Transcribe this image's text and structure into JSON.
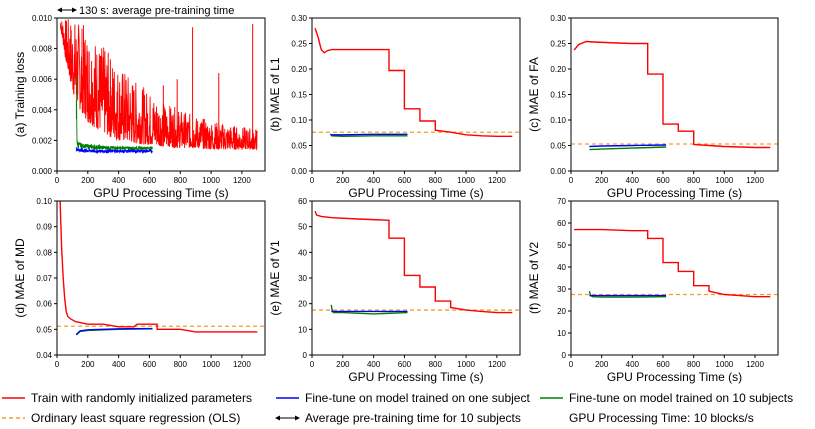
{
  "figure": {
    "x_axis_label": "GPU Processing Time  (s)",
    "annotation": "130 s: average pre-training time"
  },
  "colors": {
    "random": "#ff0000",
    "one_subject": "#0000ff",
    "ten_subjects": "#008000",
    "ols": "#f0a030",
    "axis": "#000000"
  },
  "legend": [
    {
      "key": "random",
      "label": "Train with randomly initialized parameters",
      "style": "line"
    },
    {
      "key": "one_subject",
      "label": "Fine-tune on model trained on one subject",
      "style": "line"
    },
    {
      "key": "ten_subjects",
      "label": "Fine-tune on model trained on 10 subjects",
      "style": "line"
    },
    {
      "key": "ols",
      "label": "Ordinary least square regression (OLS)",
      "style": "dashed"
    },
    {
      "key": "arrow",
      "label": "Average pre-training time for 10 subjects",
      "style": "arrow"
    },
    {
      "key": "note",
      "label": "GPU Processing Time:  10 blocks/s",
      "style": "text"
    }
  ],
  "chart_data": [
    {
      "type": "line",
      "id": "a",
      "title": "",
      "ylabel": "(a) Training loss",
      "xlabel": "GPU Processing Time  (s)",
      "xlim": [
        0,
        1350
      ],
      "ylim": [
        0,
        0.01
      ],
      "xticks": [
        0,
        200,
        400,
        600,
        800,
        1000,
        1200
      ],
      "yticks": [
        0.0,
        0.002,
        0.004,
        0.006,
        0.008,
        0.01
      ],
      "ytick_labels": [
        "0.000",
        "0.002",
        "0.004",
        "0.006",
        "0.008",
        "0.010"
      ],
      "ols": null,
      "annotation_arrow": [
        0,
        130
      ],
      "series": [
        {
          "key": "random",
          "name": "Train with randomly initialized parameters",
          "style": "noisy",
          "x": [
            20,
            60,
            100,
            150,
            200,
            250,
            300,
            350,
            400,
            450,
            500,
            600,
            700,
            800,
            900,
            1000,
            1100,
            1200,
            1300
          ],
          "upper": [
            0.01,
            0.01,
            0.01,
            0.0098,
            0.0094,
            0.0088,
            0.0082,
            0.0076,
            0.007,
            0.0065,
            0.006,
            0.0052,
            0.0045,
            0.004,
            0.0036,
            0.0033,
            0.0031,
            0.0029,
            0.0028
          ],
          "lower": [
            0.0095,
            0.007,
            0.0052,
            0.004,
            0.0032,
            0.0028,
            0.0025,
            0.0022,
            0.002,
            0.0019,
            0.0018,
            0.0017,
            0.0016,
            0.0015,
            0.0015,
            0.0014,
            0.0014,
            0.0014,
            0.0014
          ],
          "spikes": [
            {
              "x": 880,
              "y": 0.0094
            },
            {
              "x": 1270,
              "y": 0.0096
            },
            {
              "x": 780,
              "y": 0.006
            },
            {
              "x": 1050,
              "y": 0.0064
            },
            {
              "x": 690,
              "y": 0.0056
            }
          ]
        },
        {
          "key": "ten_subjects",
          "name": "Fine-tune on model trained on 10 subjects",
          "style": "band",
          "x": [
            125,
            132,
            160,
            250,
            400,
            620
          ],
          "upper": [
            0.0072,
            0.002,
            0.0018,
            0.0017,
            0.0016,
            0.0016
          ],
          "lower": [
            0.0016,
            0.0015,
            0.0015,
            0.0014,
            0.0014,
            0.0014
          ]
        },
        {
          "key": "one_subject",
          "name": "Fine-tune on model trained on one subject",
          "style": "band",
          "x": [
            125,
            160,
            250,
            400,
            620
          ],
          "upper": [
            0.0016,
            0.0015,
            0.0014,
            0.0014,
            0.0014
          ],
          "lower": [
            0.0013,
            0.0012,
            0.0012,
            0.0012,
            0.0012
          ]
        }
      ]
    },
    {
      "type": "line",
      "id": "b",
      "title": "",
      "ylabel": "(b) MAE of L1",
      "xlabel": "GPU Processing Time  (s)",
      "xlim": [
        0,
        1350
      ],
      "ylim": [
        0,
        0.3
      ],
      "xticks": [
        0,
        200,
        400,
        600,
        800,
        1000,
        1200
      ],
      "yticks": [
        0.0,
        0.05,
        0.1,
        0.15,
        0.2,
        0.25,
        0.3
      ],
      "ytick_labels": [
        "0.00",
        "0.05",
        "0.10",
        "0.15",
        "0.20",
        "0.25",
        "0.30"
      ],
      "ols": 0.076,
      "series": [
        {
          "key": "random",
          "style": "line",
          "x": [
            20,
            40,
            60,
            80,
            100,
            130,
            500,
            500,
            600,
            600,
            700,
            700,
            800,
            800,
            900,
            1000,
            1100,
            1200,
            1300
          ],
          "y": [
            0.28,
            0.262,
            0.238,
            0.232,
            0.236,
            0.238,
            0.238,
            0.197,
            0.197,
            0.122,
            0.122,
            0.098,
            0.098,
            0.08,
            0.076,
            0.071,
            0.069,
            0.068,
            0.068
          ]
        },
        {
          "key": "ten_subjects",
          "style": "line",
          "x": [
            120,
            128,
            200,
            400,
            620
          ],
          "y": [
            0.073,
            0.069,
            0.068,
            0.069,
            0.069
          ]
        },
        {
          "key": "one_subject",
          "style": "line",
          "x": [
            120,
            200,
            400,
            620
          ],
          "y": [
            0.071,
            0.071,
            0.072,
            0.072
          ]
        }
      ]
    },
    {
      "type": "line",
      "id": "c",
      "title": "",
      "ylabel": "(c) MAE of FA",
      "xlabel": "GPU Processing Time  (s)",
      "xlim": [
        0,
        1350
      ],
      "ylim": [
        0,
        0.3
      ],
      "xticks": [
        0,
        200,
        400,
        600,
        800,
        1000,
        1200
      ],
      "yticks": [
        0.0,
        0.05,
        0.1,
        0.15,
        0.2,
        0.25,
        0.3
      ],
      "ytick_labels": [
        "0.00",
        "0.05",
        "0.10",
        "0.15",
        "0.20",
        "0.25",
        "0.30"
      ],
      "ols": 0.053,
      "series": [
        {
          "key": "random",
          "style": "line",
          "x": [
            20,
            50,
            100,
            150,
            300,
            400,
            500,
            500,
            600,
            600,
            700,
            700,
            800,
            800,
            900,
            1000,
            1100,
            1200,
            1300
          ],
          "y": [
            0.237,
            0.248,
            0.254,
            0.253,
            0.251,
            0.25,
            0.25,
            0.19,
            0.19,
            0.092,
            0.092,
            0.078,
            0.078,
            0.052,
            0.05,
            0.048,
            0.047,
            0.046,
            0.046
          ]
        },
        {
          "key": "ten_subjects",
          "style": "line",
          "x": [
            120,
            200,
            400,
            620
          ],
          "y": [
            0.042,
            0.043,
            0.045,
            0.047
          ]
        },
        {
          "key": "one_subject",
          "style": "line",
          "x": [
            120,
            200,
            400,
            620
          ],
          "y": [
            0.048,
            0.049,
            0.05,
            0.051
          ]
        }
      ]
    },
    {
      "type": "line",
      "id": "d",
      "title": "",
      "ylabel": "(d) MAE of MD",
      "xlabel": "",
      "xlim": [
        0,
        1350
      ],
      "ylim": [
        0.04,
        0.1
      ],
      "xticks": [
        0,
        200,
        400,
        600,
        800,
        1000,
        1200
      ],
      "yticks": [
        0.04,
        0.05,
        0.06,
        0.07,
        0.08,
        0.09,
        0.1
      ],
      "ytick_labels": [
        "0.04",
        "0.05",
        "0.06",
        "0.07",
        "0.08",
        "0.09",
        "0.10"
      ],
      "ols": 0.0512,
      "series": [
        {
          "key": "random",
          "style": "line",
          "x": [
            20,
            30,
            40,
            50,
            60,
            70,
            90,
            120,
            200,
            300,
            400,
            500,
            520,
            600,
            650,
            650,
            700,
            800,
            900,
            1000,
            1100,
            1200,
            1300
          ],
          "y": [
            0.1,
            0.082,
            0.07,
            0.062,
            0.057,
            0.055,
            0.054,
            0.053,
            0.052,
            0.052,
            0.051,
            0.051,
            0.052,
            0.052,
            0.052,
            0.05,
            0.05,
            0.05,
            0.049,
            0.049,
            0.049,
            0.049,
            0.049
          ]
        },
        {
          "key": "ten_subjects",
          "style": "line",
          "x": [
            125,
            150,
            200,
            400,
            620
          ],
          "y": [
            0.0478,
            0.0492,
            0.0496,
            0.05,
            0.0502
          ]
        },
        {
          "key": "one_subject",
          "style": "line",
          "x": [
            125,
            150,
            200,
            400,
            620
          ],
          "y": [
            0.048,
            0.0494,
            0.0498,
            0.0502,
            0.0503
          ]
        }
      ]
    },
    {
      "type": "line",
      "id": "e",
      "title": "",
      "ylabel": "(e) MAE of V1",
      "xlabel": "GPU Processing Time  (s)",
      "xlim": [
        0,
        1350
      ],
      "ylim": [
        0,
        60
      ],
      "xticks": [
        0,
        200,
        400,
        600,
        800,
        1000,
        1200
      ],
      "yticks": [
        0,
        10,
        20,
        30,
        40,
        50,
        60
      ],
      "ytick_labels": [
        "0",
        "10",
        "20",
        "30",
        "40",
        "50",
        "60"
      ],
      "ols": 17.5,
      "series": [
        {
          "key": "random",
          "style": "line",
          "x": [
            20,
            30,
            60,
            130,
            300,
            500,
            500,
            600,
            600,
            700,
            700,
            800,
            800,
            900,
            900,
            1000,
            1100,
            1200,
            1300
          ],
          "y": [
            56.0,
            54.5,
            54.0,
            53.5,
            53.0,
            52.5,
            45.5,
            45.5,
            31.0,
            31.0,
            26.5,
            26.5,
            21.0,
            21.0,
            18.5,
            17.5,
            17.0,
            16.5,
            16.5
          ]
        },
        {
          "key": "ten_subjects",
          "style": "line",
          "x": [
            125,
            132,
            140,
            200,
            400,
            620
          ],
          "y": [
            19.5,
            17.0,
            16.5,
            16.5,
            16.0,
            16.5
          ]
        },
        {
          "key": "one_subject",
          "style": "line",
          "x": [
            125,
            200,
            400,
            620
          ],
          "y": [
            17.0,
            17.0,
            17.0,
            17.0
          ]
        }
      ]
    },
    {
      "type": "line",
      "id": "f",
      "title": "",
      "ylabel": "(f) MAE of V2",
      "xlabel": "GPU Processing Time  (s)",
      "xlim": [
        0,
        1350
      ],
      "ylim": [
        0,
        70
      ],
      "xticks": [
        0,
        200,
        400,
        600,
        800,
        1000,
        1200
      ],
      "yticks": [
        0,
        10,
        20,
        30,
        40,
        50,
        60,
        70
      ],
      "ytick_labels": [
        "0",
        "10",
        "20",
        "30",
        "40",
        "50",
        "60",
        "70"
      ],
      "ols": 27.5,
      "series": [
        {
          "key": "random",
          "style": "line",
          "x": [
            20,
            200,
            400,
            500,
            500,
            600,
            600,
            700,
            700,
            800,
            800,
            900,
            900,
            1000,
            1100,
            1200,
            1300
          ],
          "y": [
            57.0,
            57.0,
            56.5,
            56.5,
            53.0,
            53.0,
            42.0,
            42.0,
            38.0,
            38.0,
            31.5,
            31.5,
            29.0,
            27.5,
            27.0,
            26.5,
            26.5
          ]
        },
        {
          "key": "ten_subjects",
          "style": "line",
          "x": [
            120,
            128,
            140,
            200,
            400,
            620
          ],
          "y": [
            29.0,
            27.0,
            26.5,
            26.3,
            26.3,
            26.5
          ]
        },
        {
          "key": "one_subject",
          "style": "line",
          "x": [
            120,
            200,
            400,
            620
          ],
          "y": [
            27.0,
            27.0,
            27.0,
            27.0
          ]
        }
      ]
    }
  ]
}
